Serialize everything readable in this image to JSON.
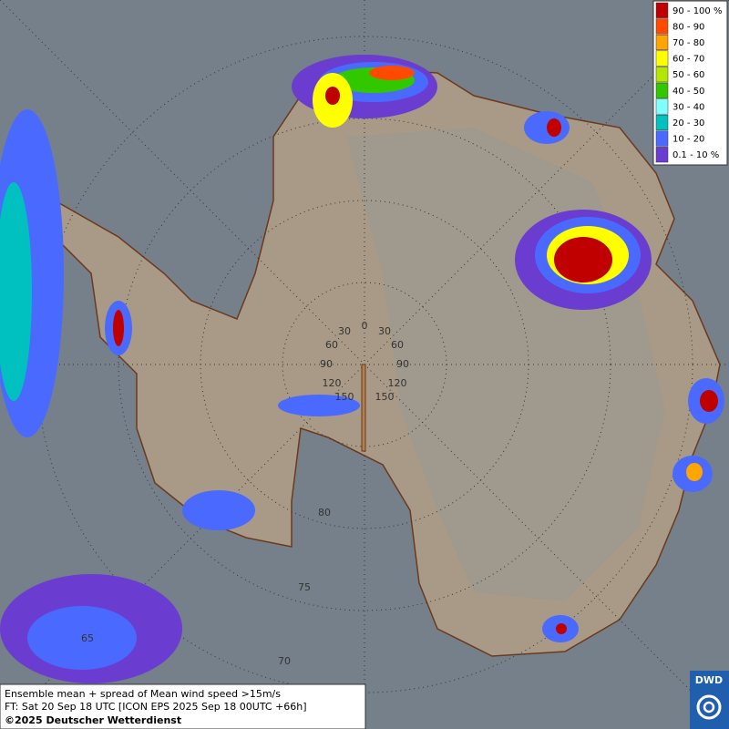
{
  "map": {
    "legend": [
      {
        "label": "90 - 100 %",
        "color": "#c00000"
      },
      {
        "label": "80 - 90",
        "color": "#ff4a00"
      },
      {
        "label": "70 - 80",
        "color": "#ffa500"
      },
      {
        "label": "60 - 70",
        "color": "#ffff00"
      },
      {
        "label": "50 - 60",
        "color": "#b4e600"
      },
      {
        "label": "40 - 50",
        "color": "#32c800"
      },
      {
        "label": "30 - 40",
        "color": "#80ffff"
      },
      {
        "label": "20 - 30",
        "color": "#00c0c0"
      },
      {
        "label": "10 - 20",
        "color": "#4a6aff"
      },
      {
        "label": "0.1 - 10 %",
        "color": "#6a3cd0"
      }
    ],
    "graticule_labels": [
      "0",
      "30",
      "30",
      "60",
      "60",
      "90",
      "90",
      "120",
      "120",
      "150",
      "150",
      "80",
      "75",
      "70",
      "65"
    ],
    "footer": {
      "line1": "Ensemble mean + spread of Mean wind speed >15m/s",
      "line2": "FT: Sat 20 Sep 18 UTC [ICON EPS 2025 Sep 18 00UTC +66h]",
      "line3": "©2025 Deutscher Wetterdienst"
    },
    "logo": "DWD"
  }
}
